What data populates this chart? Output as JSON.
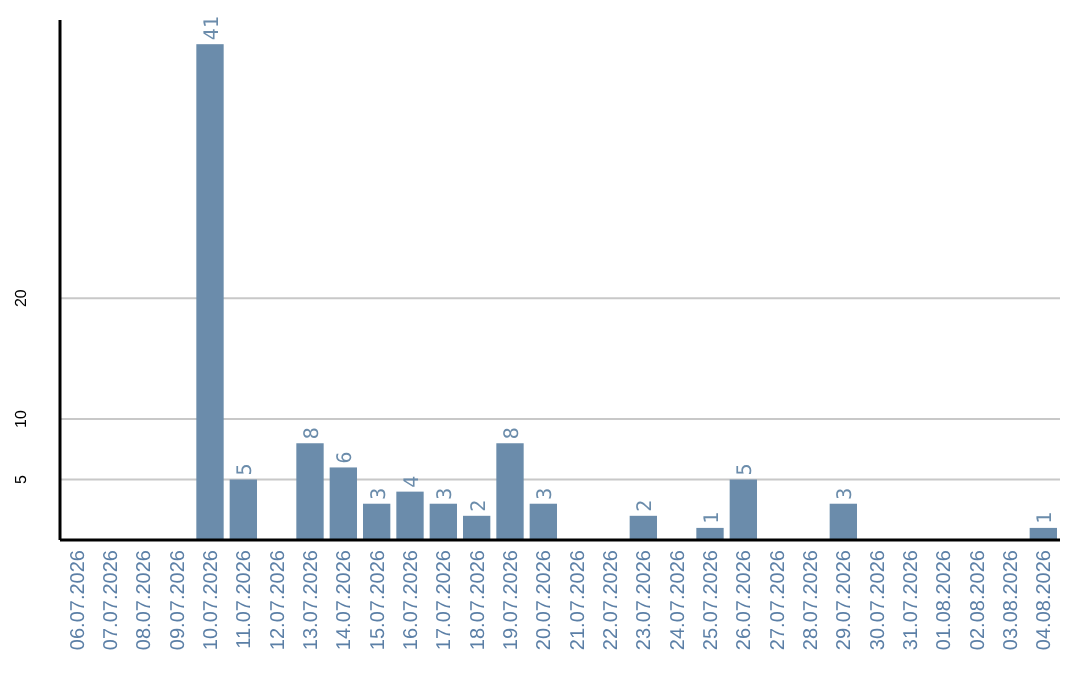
{
  "chart_data": {
    "type": "bar",
    "categories": [
      "06.07.2026",
      "07.07.2026",
      "08.07.2026",
      "09.07.2026",
      "10.07.2026",
      "11.07.2026",
      "12.07.2026",
      "13.07.2026",
      "14.07.2026",
      "15.07.2026",
      "16.07.2026",
      "17.07.2026",
      "18.07.2026",
      "19.07.2026",
      "20.07.2026",
      "21.07.2026",
      "22.07.2026",
      "23.07.2026",
      "24.07.2026",
      "25.07.2026",
      "26.07.2026",
      "27.07.2026",
      "28.07.2026",
      "29.07.2026",
      "30.07.2026",
      "31.07.2026",
      "01.08.2026",
      "02.08.2026",
      "03.08.2026",
      "04.08.2026"
    ],
    "values": [
      0,
      0,
      0,
      0,
      41,
      5,
      0,
      8,
      6,
      3,
      4,
      3,
      2,
      8,
      3,
      0,
      0,
      2,
      0,
      1,
      5,
      0,
      0,
      3,
      0,
      0,
      0,
      0,
      0,
      1
    ],
    "value_labels": [
      null,
      null,
      null,
      null,
      "41",
      "5",
      null,
      "8",
      "6",
      "3",
      "4",
      "3",
      "2",
      "8",
      "3",
      null,
      null,
      "2",
      null,
      "1",
      "5",
      null,
      null,
      "3",
      null,
      null,
      null,
      null,
      null,
      "1"
    ],
    "color": "#6b8cab",
    "ylim": [
      0,
      43
    ],
    "yticks": [
      5,
      10,
      20
    ],
    "grid": "y"
  }
}
